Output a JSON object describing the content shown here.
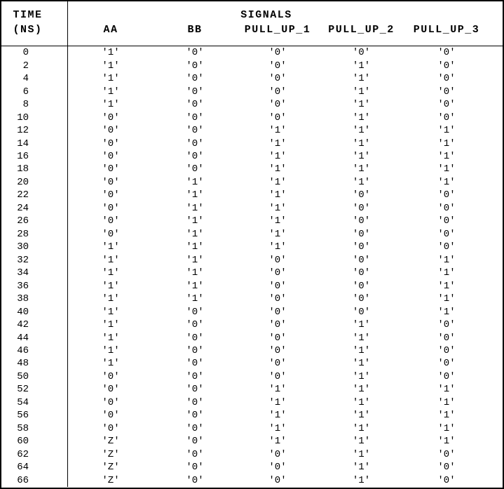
{
  "header": {
    "time_label_line1": "TIME",
    "time_label_line2": "(NS)",
    "signals_label": "SIGNALS"
  },
  "table": {
    "columns": [
      "AA",
      "BB",
      "PULL_UP_1",
      "PULL_UP_2",
      "PULL_UP_3"
    ],
    "rows": [
      {
        "time": "0",
        "values": [
          "'1'",
          "'0'",
          "'0'",
          "'0'",
          "'0'"
        ]
      },
      {
        "time": "2",
        "values": [
          "'1'",
          "'0'",
          "'0'",
          "'1'",
          "'0'"
        ]
      },
      {
        "time": "4",
        "values": [
          "'1'",
          "'0'",
          "'0'",
          "'1'",
          "'0'"
        ]
      },
      {
        "time": "6",
        "values": [
          "'1'",
          "'0'",
          "'0'",
          "'1'",
          "'0'"
        ]
      },
      {
        "time": "8",
        "values": [
          "'1'",
          "'0'",
          "'0'",
          "'1'",
          "'0'"
        ]
      },
      {
        "time": "10",
        "values": [
          "'0'",
          "'0'",
          "'0'",
          "'1'",
          "'0'"
        ]
      },
      {
        "time": "12",
        "values": [
          "'0'",
          "'0'",
          "'1'",
          "'1'",
          "'1'"
        ]
      },
      {
        "time": "14",
        "values": [
          "'0'",
          "'0'",
          "'1'",
          "'1'",
          "'1'"
        ]
      },
      {
        "time": "16",
        "values": [
          "'0'",
          "'0'",
          "'1'",
          "'1'",
          "'1'"
        ]
      },
      {
        "time": "18",
        "values": [
          "'0'",
          "'0'",
          "'1'",
          "'1'",
          "'1'"
        ]
      },
      {
        "time": "20",
        "values": [
          "'0'",
          "'1'",
          "'1'",
          "'1'",
          "'1'"
        ]
      },
      {
        "time": "22",
        "values": [
          "'0'",
          "'1'",
          "'1'",
          "'0'",
          "'0'"
        ]
      },
      {
        "time": "24",
        "values": [
          "'0'",
          "'1'",
          "'1'",
          "'0'",
          "'0'"
        ]
      },
      {
        "time": "26",
        "values": [
          "'0'",
          "'1'",
          "'1'",
          "'0'",
          "'0'"
        ]
      },
      {
        "time": "28",
        "values": [
          "'0'",
          "'1'",
          "'1'",
          "'0'",
          "'0'"
        ]
      },
      {
        "time": "30",
        "values": [
          "'1'",
          "'1'",
          "'1'",
          "'0'",
          "'0'"
        ]
      },
      {
        "time": "32",
        "values": [
          "'1'",
          "'1'",
          "'0'",
          "'0'",
          "'1'"
        ]
      },
      {
        "time": "34",
        "values": [
          "'1'",
          "'1'",
          "'0'",
          "'0'",
          "'1'"
        ]
      },
      {
        "time": "36",
        "values": [
          "'1'",
          "'1'",
          "'0'",
          "'0'",
          "'1'"
        ]
      },
      {
        "time": "38",
        "values": [
          "'1'",
          "'1'",
          "'0'",
          "'0'",
          "'1'"
        ]
      },
      {
        "time": "40",
        "values": [
          "'1'",
          "'0'",
          "'0'",
          "'0'",
          "'1'"
        ]
      },
      {
        "time": "42",
        "values": [
          "'1'",
          "'0'",
          "'0'",
          "'1'",
          "'0'"
        ]
      },
      {
        "time": "44",
        "values": [
          "'1'",
          "'0'",
          "'0'",
          "'1'",
          "'0'"
        ]
      },
      {
        "time": "46",
        "values": [
          "'1'",
          "'0'",
          "'0'",
          "'1'",
          "'0'"
        ]
      },
      {
        "time": "48",
        "values": [
          "'1'",
          "'0'",
          "'0'",
          "'1'",
          "'0'"
        ]
      },
      {
        "time": "50",
        "values": [
          "'0'",
          "'0'",
          "'0'",
          "'1'",
          "'0'"
        ]
      },
      {
        "time": "52",
        "values": [
          "'0'",
          "'0'",
          "'1'",
          "'1'",
          "'1'"
        ]
      },
      {
        "time": "54",
        "values": [
          "'0'",
          "'0'",
          "'1'",
          "'1'",
          "'1'"
        ]
      },
      {
        "time": "56",
        "values": [
          "'0'",
          "'0'",
          "'1'",
          "'1'",
          "'1'"
        ]
      },
      {
        "time": "58",
        "values": [
          "'0'",
          "'0'",
          "'1'",
          "'1'",
          "'1'"
        ]
      },
      {
        "time": "60",
        "values": [
          "'Z'",
          "'0'",
          "'1'",
          "'1'",
          "'1'"
        ]
      },
      {
        "time": "62",
        "values": [
          "'Z'",
          "'0'",
          "'0'",
          "'1'",
          "'0'"
        ]
      },
      {
        "time": "64",
        "values": [
          "'Z'",
          "'0'",
          "'0'",
          "'1'",
          "'0'"
        ]
      },
      {
        "time": "66",
        "values": [
          "'Z'",
          "'0'",
          "'0'",
          "'1'",
          "'0'"
        ]
      }
    ]
  },
  "colors": {
    "text": "#000000",
    "background": "#ffffff",
    "border": "#000000"
  }
}
